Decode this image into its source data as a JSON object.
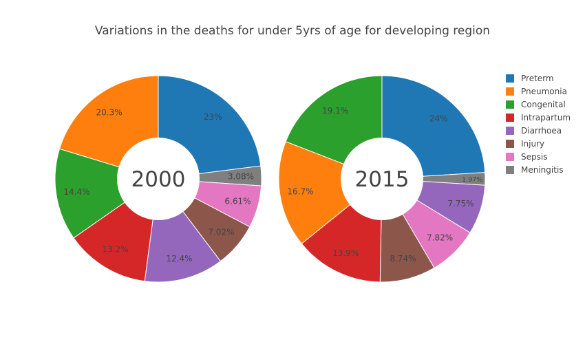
{
  "chart_data": {
    "type": "pie",
    "title": "Variations in the deaths for under 5yrs of age for developing region",
    "legend_position": "top-right",
    "legend": [
      "Preterm",
      "Pneumonia",
      "Congenital",
      "Intrapartum",
      "Diarrhoea",
      "Injury",
      "Sepsis",
      "Meningitis"
    ],
    "colors": {
      "Preterm": "#1f77b4",
      "Pneumonia": "#ff7f0e",
      "Congenital": "#2ca02c",
      "Intrapartum": "#d62728",
      "Diarrhoea": "#9467bd",
      "Injury": "#8c564b",
      "Sepsis": "#e377c2",
      "Meningitis": "#7f7f7f"
    },
    "pies": [
      {
        "center_label": "2000",
        "slices": [
          {
            "label": "Preterm",
            "value": 23,
            "text": "23%"
          },
          {
            "label": "Meningitis",
            "value": 3.08,
            "text": "3.08%"
          },
          {
            "label": "Sepsis",
            "value": 6.61,
            "text": "6.61%"
          },
          {
            "label": "Injury",
            "value": 7.02,
            "text": "7.02%"
          },
          {
            "label": "Diarrhoea",
            "value": 12.4,
            "text": "12.4%"
          },
          {
            "label": "Intrapartum",
            "value": 13.2,
            "text": "13.2%"
          },
          {
            "label": "Congenital",
            "value": 14.4,
            "text": "14.4%"
          },
          {
            "label": "Pneumonia",
            "value": 20.3,
            "text": "20.3%"
          }
        ]
      },
      {
        "center_label": "2015",
        "slices": [
          {
            "label": "Preterm",
            "value": 24,
            "text": "24%"
          },
          {
            "label": "Meningitis",
            "value": 1.97,
            "text": "1.97%"
          },
          {
            "label": "Diarrhoea",
            "value": 7.75,
            "text": "7.75%"
          },
          {
            "label": "Sepsis",
            "value": 7.82,
            "text": "7.82%"
          },
          {
            "label": "Injury",
            "value": 8.74,
            "text": "8.74%"
          },
          {
            "label": "Intrapartum",
            "value": 13.9,
            "text": "13.9%"
          },
          {
            "label": "Pneumonia",
            "value": 16.7,
            "text": "16.7%"
          },
          {
            "label": "Congenital",
            "value": 19.1,
            "text": "19.1%"
          }
        ]
      }
    ]
  }
}
